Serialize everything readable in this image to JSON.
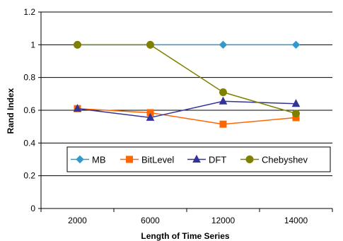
{
  "chart_data": {
    "type": "line",
    "title": "",
    "xlabel": "Length of Time Series",
    "ylabel": "Rand Index",
    "categories": [
      "2000",
      "6000",
      "12000",
      "14000"
    ],
    "ylim": [
      0,
      1.2
    ],
    "yticks": [
      "0",
      "0.2",
      "0.4",
      "0.6",
      "0.8",
      "1",
      "1.2"
    ],
    "grid": "horizontal",
    "legend_position": "inside-bottom",
    "series": [
      {
        "name": "MB",
        "values": [
          1.0,
          1.0,
          1.0,
          1.0
        ],
        "color": "#3399cc",
        "marker": "diamond"
      },
      {
        "name": "BitLevel",
        "values": [
          0.61,
          0.585,
          0.515,
          0.555
        ],
        "color": "#ff6600",
        "marker": "square"
      },
      {
        "name": "DFT",
        "values": [
          0.61,
          0.555,
          0.655,
          0.64
        ],
        "color": "#333399",
        "marker": "triangle"
      },
      {
        "name": "Chebyshev",
        "values": [
          1.0,
          1.0,
          0.71,
          0.58
        ],
        "color": "#808000",
        "marker": "circle"
      }
    ]
  }
}
